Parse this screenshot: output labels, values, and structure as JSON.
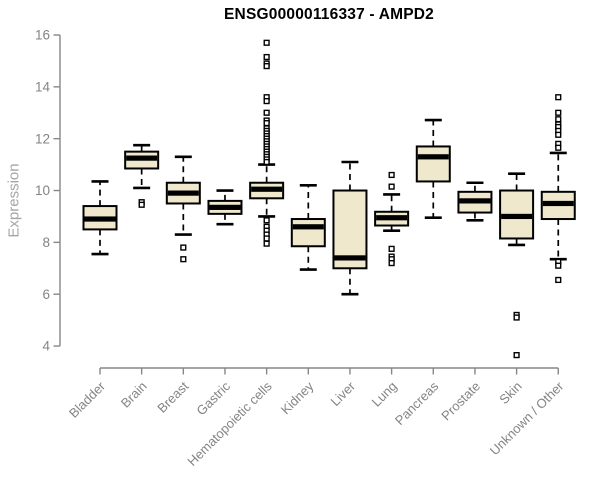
{
  "title": "ENSG00000116337 - AMPD2",
  "colors": {
    "background": "#ffffff",
    "box_fill": "#efe8cc",
    "box_border": "#000000",
    "median": "#000000",
    "whisker": "#000000",
    "outlier_stroke": "#000000",
    "outlier_fill": "#ffffff",
    "axis_line": "#878787",
    "tick_label": "#848484",
    "axis_title": "#a5a5a5",
    "title_text": "#000000"
  },
  "chart_data": {
    "type": "boxplot",
    "title": "ENSG00000116337 - AMPD2",
    "xlabel": "",
    "ylabel": "Expression",
    "ylim": [
      3.5,
      16
    ],
    "y_ticks": [
      16,
      14,
      12,
      10,
      8,
      6,
      4
    ],
    "grid": "off",
    "legend": "none",
    "categories": [
      "Bladder",
      "Brain",
      "Breast",
      "Gastric",
      "Hematopoietic cells",
      "Kidney",
      "Liver",
      "Lung",
      "Pancreas",
      "Prostate",
      "Skin",
      "Unknown / Other"
    ],
    "series": [
      {
        "name": "Bladder",
        "whisker_low": 7.55,
        "q1": 8.5,
        "median": 8.9,
        "q3": 9.4,
        "whisker_high": 10.35,
        "outliers": []
      },
      {
        "name": "Brain",
        "whisker_low": 10.1,
        "q1": 10.85,
        "median": 11.25,
        "q3": 11.5,
        "whisker_high": 11.75,
        "outliers": [
          9.55,
          9.45
        ]
      },
      {
        "name": "Breast",
        "whisker_low": 8.3,
        "q1": 9.5,
        "median": 9.9,
        "q3": 10.3,
        "whisker_high": 11.3,
        "outliers": [
          7.8,
          7.35
        ]
      },
      {
        "name": "Gastric",
        "whisker_low": 8.7,
        "q1": 9.1,
        "median": 9.35,
        "q3": 9.6,
        "whisker_high": 10.0,
        "outliers": []
      },
      {
        "name": "Hematopoietic cells",
        "whisker_low": 9.0,
        "q1": 9.7,
        "median": 10.05,
        "q3": 10.3,
        "whisker_high": 11.0,
        "outliers": [
          15.7,
          15.15,
          14.9,
          14.8,
          13.6,
          13.45,
          13.0,
          12.7,
          12.6,
          12.4,
          12.3,
          12.2,
          12.1,
          12.0,
          11.9,
          11.8,
          11.7,
          11.6,
          11.5,
          11.4,
          11.3,
          11.2,
          11.1,
          8.85,
          8.6,
          8.45,
          8.3,
          8.15,
          7.95
        ]
      },
      {
        "name": "Kidney",
        "whisker_low": 6.95,
        "q1": 7.85,
        "median": 8.6,
        "q3": 8.9,
        "whisker_high": 10.2,
        "outliers": []
      },
      {
        "name": "Liver",
        "whisker_low": 6.0,
        "q1": 7.0,
        "median": 7.4,
        "q3": 10.0,
        "whisker_high": 11.1,
        "outliers": []
      },
      {
        "name": "Lung",
        "whisker_low": 8.45,
        "q1": 8.65,
        "median": 8.95,
        "q3": 9.18,
        "whisker_high": 9.85,
        "outliers": [
          10.6,
          10.15,
          7.75,
          7.45,
          7.35,
          7.2
        ]
      },
      {
        "name": "Pancreas",
        "whisker_low": 8.95,
        "q1": 10.35,
        "median": 11.3,
        "q3": 11.7,
        "whisker_high": 12.72,
        "outliers": []
      },
      {
        "name": "Prostate",
        "whisker_low": 8.85,
        "q1": 9.15,
        "median": 9.6,
        "q3": 9.95,
        "whisker_high": 10.3,
        "outliers": []
      },
      {
        "name": "Skin",
        "whisker_low": 7.9,
        "q1": 8.15,
        "median": 9.0,
        "q3": 10.0,
        "whisker_high": 10.65,
        "outliers": [
          5.2,
          5.1,
          3.65
        ]
      },
      {
        "name": "Unknown / Other",
        "whisker_low": 7.35,
        "q1": 8.9,
        "median": 9.5,
        "q3": 9.95,
        "whisker_high": 11.45,
        "outliers": [
          13.6,
          13.0,
          12.75,
          12.55,
          12.45,
          12.3,
          12.15,
          11.8,
          11.65,
          7.25,
          7.1,
          6.55
        ]
      }
    ]
  }
}
